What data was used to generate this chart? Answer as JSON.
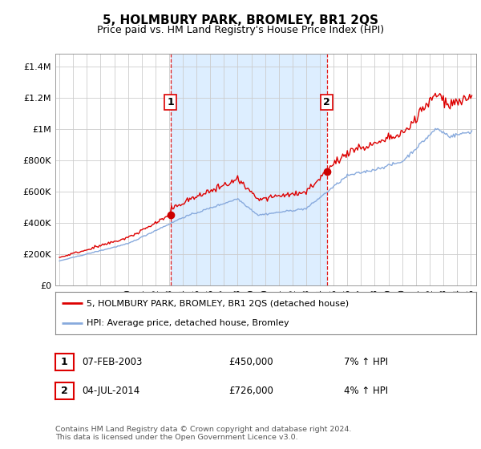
{
  "title": "5, HOLMBURY PARK, BROMLEY, BR1 2QS",
  "subtitle": "Price paid vs. HM Land Registry's House Price Index (HPI)",
  "ylabel_ticks": [
    "£0",
    "£200K",
    "£400K",
    "£600K",
    "£800K",
    "£1M",
    "£1.2M",
    "£1.4M"
  ],
  "ytick_values": [
    0,
    200000,
    400000,
    600000,
    800000,
    1000000,
    1200000,
    1400000
  ],
  "ylim": [
    0,
    1480000
  ],
  "sale1_year": 2003.1,
  "sale1_price": 450000,
  "sale2_year": 2014.5,
  "sale2_price": 726000,
  "legend_label_red": "5, HOLMBURY PARK, BROMLEY, BR1 2QS (detached house)",
  "legend_label_blue": "HPI: Average price, detached house, Bromley",
  "table_row1": [
    "1",
    "07-FEB-2003",
    "£450,000",
    "7% ↑ HPI"
  ],
  "table_row2": [
    "2",
    "04-JUL-2014",
    "£726,000",
    "4% ↑ HPI"
  ],
  "footer": "Contains HM Land Registry data © Crown copyright and database right 2024.\nThis data is licensed under the Open Government Licence v3.0.",
  "red_color": "#dd0000",
  "blue_color": "#88aadd",
  "shade_color": "#ddeeff",
  "grid_color": "#cccccc",
  "bg_color": "#ffffff",
  "vline_color": "#dd0000",
  "marker_color": "#cc0000"
}
